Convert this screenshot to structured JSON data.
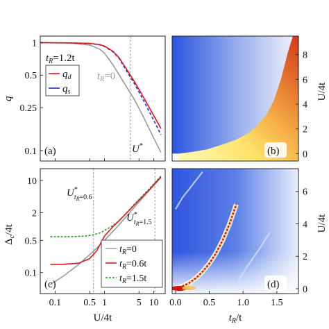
{
  "chart_data": [
    {
      "panel": "(a)",
      "type": "line",
      "ylabel": "q",
      "yscale": "log",
      "xscale": "log",
      "xlim": [
        0.05,
        17
      ],
      "ylim": [
        0.08,
        1.15
      ],
      "yticks": [
        {
          "v": 1,
          "label": "1"
        },
        {
          "v": 0.5,
          "label": "0.5"
        },
        {
          "v": 0.25,
          "label": "0.25"
        },
        {
          "v": 0.1,
          "label": "0.1"
        }
      ],
      "legend_title": "t",
      "legend_title_sub": "R",
      "legend_title_tail": "=1.2t",
      "annotations": {
        "tr0_main": "t",
        "tr0_sub": "R",
        "tr0_tail": "=0",
        "ustar_main": "U",
        "ustar_sup": "*"
      },
      "ref_x": [
        3.3
      ],
      "series": [
        {
          "name_main": "q",
          "name_sub": "d",
          "color": "#e0141c",
          "dash": "",
          "x": [
            0.05,
            0.2,
            0.5,
            0.8,
            1.0,
            1.5,
            2.0,
            3.0,
            4.0,
            6.0,
            10.0,
            14.0
          ],
          "y": [
            1.0,
            0.995,
            0.985,
            0.96,
            0.93,
            0.83,
            0.72,
            0.54,
            0.44,
            0.32,
            0.21,
            0.16
          ]
        },
        {
          "name_main": "q",
          "name_sub": "s",
          "color": "#1f2fd0",
          "dash": "4 3",
          "x": [
            0.05,
            0.2,
            0.5,
            0.8,
            1.0,
            1.5,
            2.0,
            3.0,
            4.0,
            6.0,
            10.0,
            14.0
          ],
          "y": [
            1.0,
            0.995,
            0.98,
            0.955,
            0.92,
            0.82,
            0.71,
            0.52,
            0.42,
            0.3,
            0.19,
            0.14
          ]
        },
        {
          "name_main": "",
          "name_sub": "",
          "color": "#999999",
          "dash": "",
          "x": [
            0.05,
            0.2,
            0.5,
            0.8,
            1.0,
            1.5,
            2.0,
            3.0,
            4.0,
            6.0,
            10.0,
            14.0
          ],
          "y": [
            1.0,
            0.99,
            0.95,
            0.87,
            0.8,
            0.62,
            0.5,
            0.37,
            0.3,
            0.21,
            0.13,
            0.096
          ]
        }
      ]
    },
    {
      "panel": "(b)",
      "type": "heatmap",
      "ylabel": "U/4t",
      "xlim": [
        0,
        1.8
      ],
      "ylim": [
        -0.6,
        9.5
      ],
      "yticks": [
        {
          "v": 0,
          "label": "0"
        },
        {
          "v": 2,
          "label": "2"
        },
        {
          "v": 4,
          "label": "4"
        },
        {
          "v": 6,
          "label": "6"
        },
        {
          "v": 8,
          "label": "8"
        }
      ],
      "boundary": {
        "tR": [
          0.0,
          0.1,
          0.3,
          0.5,
          0.7,
          0.9,
          1.1,
          1.2,
          1.35,
          1.45,
          1.55,
          1.65,
          1.72
        ],
        "U": [
          0.0,
          0.0,
          0.15,
          0.35,
          0.7,
          1.1,
          1.7,
          2.2,
          3.2,
          4.3,
          6.0,
          8.2,
          9.5
        ]
      }
    },
    {
      "panel": "(c)",
      "type": "line",
      "ylabel_main": "Δ",
      "ylabel_sub": "c",
      "ylabel_tail": "/4t",
      "xlabel": "U/4t",
      "xscale": "log",
      "yscale": "log",
      "xlim": [
        0.05,
        17
      ],
      "ylim": [
        0.035,
        18
      ],
      "xticks": [
        {
          "v": 0.1,
          "label": "0.1"
        },
        {
          "v": 0.5,
          "label": "0.5"
        },
        {
          "v": 1,
          "label": "1"
        },
        {
          "v": 5,
          "label": "5"
        },
        {
          "v": 10,
          "label": "10"
        }
      ],
      "yticks": [
        {
          "v": 10,
          "label": "10"
        },
        {
          "v": 2,
          "label": "2"
        },
        {
          "v": 0.5,
          "label": "0.5"
        },
        {
          "v": 0.1,
          "label": "0.1"
        }
      ],
      "ref_x": [
        0.6,
        10.5
      ],
      "annotations": {
        "u06_main": "U",
        "u06_sup": "*",
        "u06_sub": "t",
        "u06_subsub": "R",
        "u06_tail": "=0.6",
        "u15_main": "U",
        "u15_sup": "*",
        "u15_sub": "t",
        "u15_subsub": "R",
        "u15_tail": "=1.5"
      },
      "series": [
        {
          "name_main": "t",
          "name_sub": "R",
          "name_tail": "=0",
          "color": "#999999",
          "dash": "",
          "x": [
            0.08,
            0.15,
            0.3,
            0.6,
            1.0,
            2.0,
            4.0,
            8.0,
            14.0
          ],
          "y": [
            0.055,
            0.085,
            0.15,
            0.29,
            0.5,
            1.1,
            2.6,
            6.0,
            11.5
          ]
        },
        {
          "name_main": "t",
          "name_sub": "R",
          "name_tail": "=0.6t",
          "color": "#e0141c",
          "dash": "",
          "x": [
            0.08,
            0.15,
            0.3,
            0.5,
            0.7,
            1.0,
            1.5,
            2.0,
            4.0,
            8.0,
            14.0
          ],
          "y": [
            0.15,
            0.152,
            0.16,
            0.2,
            0.3,
            0.62,
            1.0,
            1.35,
            2.9,
            6.2,
            12.0
          ]
        },
        {
          "name_main": "t",
          "name_sub": "R",
          "name_tail": "=1.5t",
          "color": "#1aa01a",
          "dash": "3 2",
          "x": [
            0.08,
            0.2,
            0.4,
            0.6,
            0.8,
            1.0,
            1.5,
            2.0,
            4.0,
            8.0,
            14.0
          ],
          "y": [
            0.6,
            0.6,
            0.62,
            0.66,
            0.72,
            0.82,
            1.05,
            1.35,
            3.0,
            6.5,
            12.5
          ]
        }
      ]
    },
    {
      "panel": "(d)",
      "type": "heatmap",
      "ylabel": "U/4t",
      "xlabel_main": "t",
      "xlabel_sub": "R",
      "xlabel_tail": "/t",
      "xlim": [
        -0.05,
        1.82
      ],
      "ylim": [
        -0.3,
        7.4
      ],
      "xticks": [
        {
          "v": 0.0,
          "label": "0.0"
        },
        {
          "v": 0.5,
          "label": "0.5"
        },
        {
          "v": 1.0,
          "label": "1.0"
        },
        {
          "v": 1.5,
          "label": "1.5"
        }
      ],
      "yticks": [
        {
          "v": 0,
          "label": "0"
        },
        {
          "v": 2,
          "label": "2"
        },
        {
          "v": 4,
          "label": "4"
        },
        {
          "v": 6,
          "label": "6"
        }
      ],
      "ridge": {
        "tR": [
          0.0,
          0.1,
          0.2,
          0.3,
          0.4,
          0.5,
          0.6,
          0.7,
          0.8,
          0.9
        ],
        "U": [
          0.05,
          0.15,
          0.35,
          0.65,
          1.05,
          1.55,
          2.2,
          3.0,
          4.0,
          5.2
        ]
      },
      "faint_ridges": [
        {
          "tR": [
            0.0,
            0.1,
            0.25,
            0.4
          ],
          "U": [
            4.9,
            5.6,
            6.4,
            7.2
          ]
        },
        {
          "tR": [
            0.9,
            1.05,
            1.25,
            1.4
          ],
          "U": [
            0.3,
            1.3,
            2.5,
            3.5
          ]
        }
      ]
    }
  ]
}
